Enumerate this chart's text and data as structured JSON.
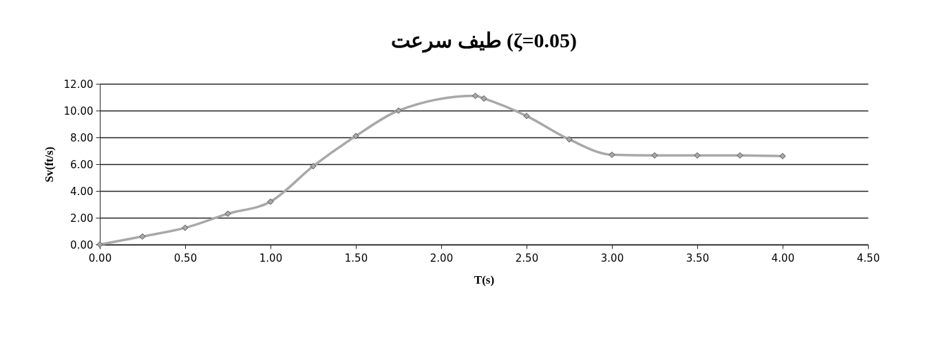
{
  "chart_data": {
    "type": "line",
    "title": "طيف سرعت (ζ=0.05)",
    "xlabel": "T(s)",
    "ylabel": "Sv(ft/s)",
    "x": [
      0,
      0.25,
      0.5,
      0.75,
      1.0,
      1.25,
      1.5,
      1.75,
      2.2,
      2.25,
      2.5,
      2.75,
      3.0,
      3.25,
      3.5,
      3.75,
      4.0
    ],
    "series": [
      {
        "color": "#a8a8a8",
        "values": [
          0,
          0.6,
          1.25,
          2.3,
          3.2,
          5.85,
          8.1,
          10.0,
          11.1,
          10.9,
          9.6,
          7.85,
          6.7,
          6.65,
          6.65,
          6.65,
          6.6
        ]
      }
    ],
    "xlim": [
      0,
      4.5
    ],
    "xticks": [
      {
        "value": 0,
        "label": "0.00"
      },
      {
        "value": 0.5,
        "label": "0.50"
      },
      {
        "value": 1,
        "label": "1.00"
      },
      {
        "value": 1.5,
        "label": "1.50"
      },
      {
        "value": 2,
        "label": "2.00"
      },
      {
        "value": 2.5,
        "label": "2.50"
      },
      {
        "value": 3,
        "label": "3.00"
      },
      {
        "value": 3.5,
        "label": "3.50"
      },
      {
        "value": 4,
        "label": "4.00"
      },
      {
        "value": 4.5,
        "label": "4.50"
      }
    ],
    "ylim": [
      0,
      12
    ],
    "yticks": [
      {
        "value": 0,
        "label": "0.00"
      },
      {
        "value": 2,
        "label": "2.00"
      },
      {
        "value": 4,
        "label": "4.00"
      },
      {
        "value": 6,
        "label": "6.00"
      },
      {
        "value": 8,
        "label": "8.00"
      },
      {
        "value": 10,
        "label": "10.00"
      },
      {
        "value": 12,
        "label": "12.00"
      }
    ],
    "grid": "y",
    "marker": "diamond",
    "line_style": "solid"
  }
}
